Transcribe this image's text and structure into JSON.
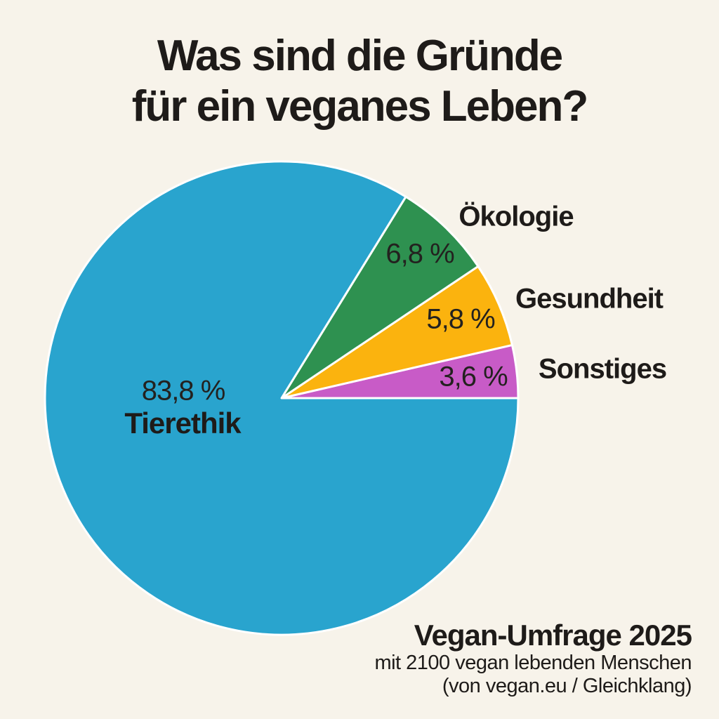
{
  "background_color": "#F7F3EA",
  "text_color": "#1E1B19",
  "title": {
    "lines": [
      "Was sind die Gründe",
      "für ein veganes Leben?"
    ]
  },
  "chart_data": {
    "type": "pie",
    "title": "Was sind die Gründe für ein veganes Leben?",
    "start_angle_deg": 0,
    "direction": "counterclockwise",
    "separator_color": "#FFFFFF",
    "slices": [
      {
        "label": "Sonstiges",
        "value_pct": 3.6,
        "display_pct": "3,6 %",
        "color": "#C85BC7"
      },
      {
        "label": "Gesundheit",
        "value_pct": 5.8,
        "display_pct": "5,8 %",
        "color": "#FBB30E"
      },
      {
        "label": "Ökologie",
        "value_pct": 6.8,
        "display_pct": "6,8 %",
        "color": "#2E9150"
      },
      {
        "label": "Tierethik",
        "value_pct": 83.8,
        "display_pct": "83,8 %",
        "color": "#29A4CE"
      }
    ]
  },
  "footer": {
    "title": "Vegan-Umfrage 2025",
    "line2": "mit 2100 vegan lebenden Menschen",
    "line3": "(von vegan.eu / Gleichklang)"
  }
}
